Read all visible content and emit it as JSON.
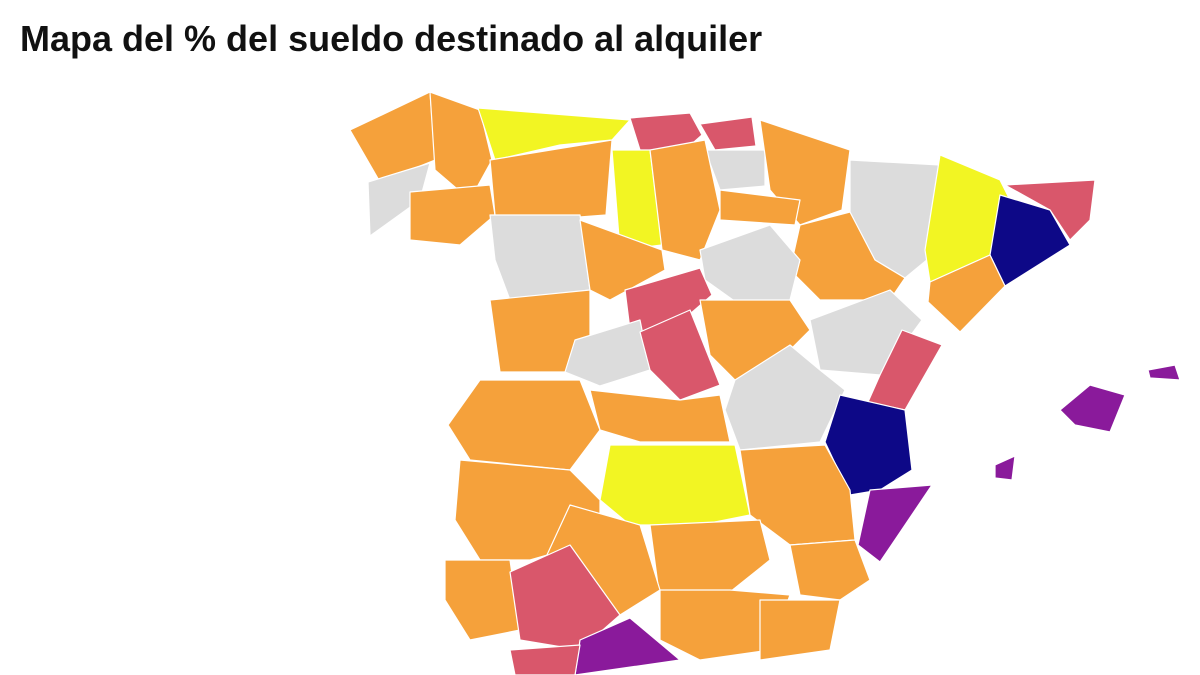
{
  "title": "Mapa del % del sueldo destinado al alquiler"
}
